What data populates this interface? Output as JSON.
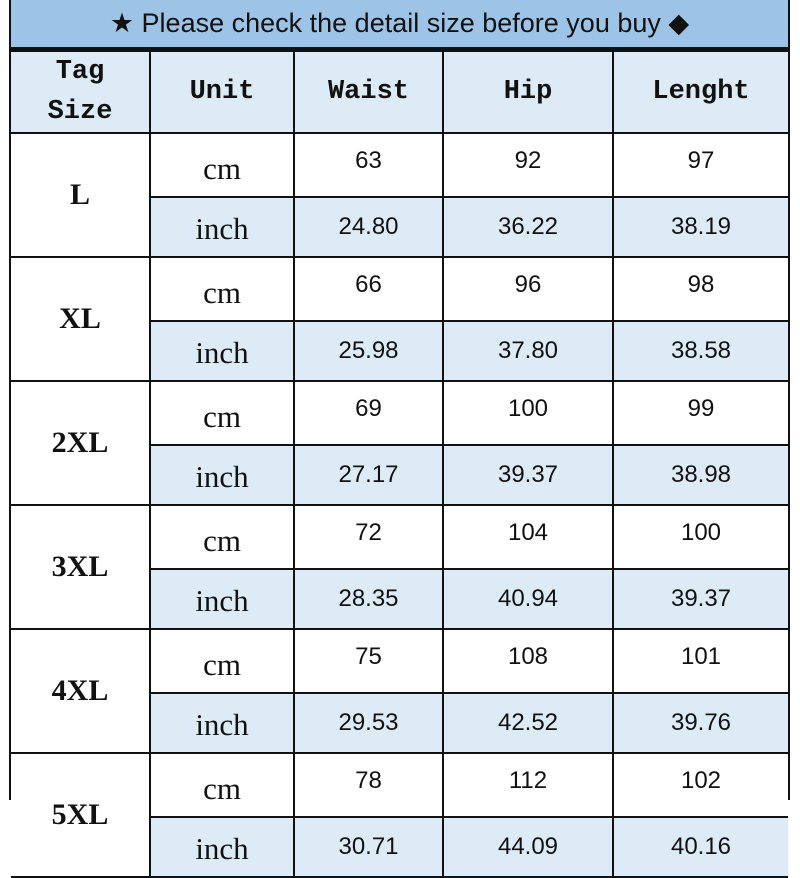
{
  "banner": {
    "text": "★ Please check the detail size before you buy ◆"
  },
  "colors": {
    "banner": "#9dc3e6",
    "light_row": "#ddebf7",
    "border": "#111111"
  },
  "table": {
    "headers": [
      [
        "Tag",
        "Size"
      ],
      [
        "Unit"
      ],
      [
        "Waist"
      ],
      [
        "Hip"
      ],
      [
        "Lenght"
      ]
    ],
    "sizes": [
      {
        "size": "L",
        "cm": [
          "63",
          "92",
          "97"
        ],
        "inch": [
          "24.80",
          "36.22",
          "38.19"
        ]
      },
      {
        "size": "XL",
        "cm": [
          "66",
          "96",
          "98"
        ],
        "inch": [
          "25.98",
          "37.80",
          "38.58"
        ]
      },
      {
        "size": "2XL",
        "cm": [
          "69",
          "100",
          "99"
        ],
        "inch": [
          "27.17",
          "39.37",
          "38.98"
        ]
      },
      {
        "size": "3XL",
        "cm": [
          "72",
          "104",
          "100"
        ],
        "inch": [
          "28.35",
          "40.94",
          "39.37"
        ]
      },
      {
        "size": "4XL",
        "cm": [
          "75",
          "108",
          "101"
        ],
        "inch": [
          "29.53",
          "42.52",
          "39.76"
        ]
      },
      {
        "size": "5XL",
        "cm": [
          "78",
          "112",
          "102"
        ],
        "inch": [
          "30.71",
          "44.09",
          "40.16"
        ]
      }
    ],
    "unit_labels": {
      "cm": "cm",
      "inch": "inch"
    }
  }
}
